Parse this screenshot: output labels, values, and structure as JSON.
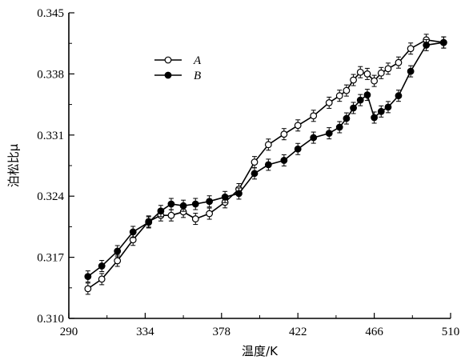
{
  "chart_data": {
    "type": "line",
    "xlabel": "温度/K",
    "ylabel": "泊松比μ",
    "xlim": [
      290,
      510
    ],
    "ylim": [
      0.31,
      0.345
    ],
    "xticks": [
      "290",
      "334",
      "378",
      "422",
      "466",
      "510"
    ],
    "yticks": [
      "0.310",
      "0.317",
      "0.324",
      "0.331",
      "0.338",
      "0.345"
    ],
    "legend_position": "top-left",
    "grid": false,
    "series": [
      {
        "name": "A",
        "marker": "open-circle",
        "x": [
          301,
          309,
          318,
          327,
          336,
          343,
          349,
          356,
          363,
          371,
          380,
          388,
          397,
          405,
          414,
          422,
          431,
          440,
          446,
          450,
          454,
          458,
          462,
          466,
          470,
          474,
          480,
          487,
          496,
          506
        ],
        "y": [
          0.3134,
          0.3145,
          0.3166,
          0.319,
          0.3211,
          0.3218,
          0.3218,
          0.3222,
          0.3214,
          0.322,
          0.3233,
          0.3248,
          0.3279,
          0.3299,
          0.3311,
          0.3321,
          0.3332,
          0.3347,
          0.3355,
          0.3361,
          0.3373,
          0.3382,
          0.338,
          0.3372,
          0.3381,
          0.3386,
          0.3393,
          0.3409,
          0.3419,
          0.3416
        ]
      },
      {
        "name": "B",
        "marker": "filled-circle",
        "x": [
          301,
          309,
          318,
          327,
          336,
          343,
          349,
          356,
          363,
          371,
          380,
          388,
          397,
          405,
          414,
          422,
          431,
          440,
          446,
          450,
          454,
          458,
          462,
          466,
          470,
          474,
          480,
          487,
          496,
          506
        ],
        "y": [
          0.3148,
          0.316,
          0.3177,
          0.3199,
          0.321,
          0.3223,
          0.3231,
          0.3229,
          0.3231,
          0.3234,
          0.3239,
          0.3243,
          0.3266,
          0.3276,
          0.3281,
          0.3294,
          0.3307,
          0.3312,
          0.3319,
          0.3329,
          0.3341,
          0.335,
          0.3356,
          0.333,
          0.3337,
          0.3342,
          0.3355,
          0.3383,
          0.3413,
          0.3416
        ]
      }
    ]
  }
}
